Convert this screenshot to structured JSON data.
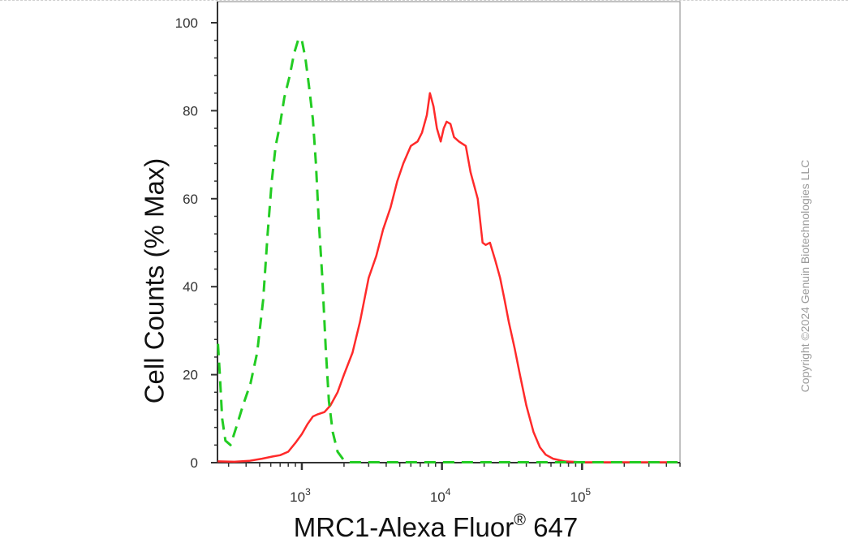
{
  "chart_data": {
    "type": "line",
    "title": "",
    "xlabel": "MRC1-Alexa Fluor",
    "xlabel_superscript": "®",
    "xlabel_suffix": " 647",
    "ylabel": "Cell Counts (% Max)",
    "x_scale": "log",
    "xlim": [
      250,
      500000
    ],
    "ylim": [
      0,
      100
    ],
    "yticks": [
      0,
      20,
      40,
      60,
      80,
      100
    ],
    "xticks": [
      {
        "value": 1000,
        "base": "10",
        "exp": "3"
      },
      {
        "value": 10000,
        "base": "10",
        "exp": "4"
      },
      {
        "value": 100000,
        "base": "10",
        "exp": "5"
      }
    ],
    "grid": false,
    "legend": "none",
    "series": [
      {
        "color": "#ff2a2a",
        "style": "solid",
        "points": [
          [
            251,
            0.3
          ],
          [
            330,
            0.2
          ],
          [
            420,
            0.4
          ],
          [
            520,
            0.9
          ],
          [
            620,
            1.4
          ],
          [
            700,
            1.7
          ],
          [
            800,
            2.5
          ],
          [
            900,
            4.5
          ],
          [
            1000,
            6.5
          ],
          [
            1100,
            8.8
          ],
          [
            1200,
            10.5
          ],
          [
            1300,
            11
          ],
          [
            1450,
            11.5
          ],
          [
            1600,
            13
          ],
          [
            1800,
            16
          ],
          [
            2000,
            20
          ],
          [
            2300,
            25
          ],
          [
            2600,
            32
          ],
          [
            3000,
            42
          ],
          [
            3400,
            47
          ],
          [
            3800,
            53
          ],
          [
            4300,
            58
          ],
          [
            4800,
            64
          ],
          [
            5300,
            68
          ],
          [
            6000,
            72
          ],
          [
            6700,
            73
          ],
          [
            7200,
            75
          ],
          [
            7800,
            79
          ],
          [
            8200,
            84
          ],
          [
            8700,
            81
          ],
          [
            9200,
            76
          ],
          [
            9800,
            73
          ],
          [
            10300,
            76
          ],
          [
            10800,
            77.5
          ],
          [
            11500,
            77
          ],
          [
            12200,
            74
          ],
          [
            13200,
            73
          ],
          [
            14800,
            72
          ],
          [
            16000,
            66
          ],
          [
            18000,
            60
          ],
          [
            19500,
            50
          ],
          [
            20500,
            49.5
          ],
          [
            22000,
            50
          ],
          [
            24000,
            46
          ],
          [
            26000,
            42
          ],
          [
            28000,
            37
          ],
          [
            30000,
            32
          ],
          [
            33000,
            26
          ],
          [
            36000,
            20
          ],
          [
            40000,
            13
          ],
          [
            45000,
            7
          ],
          [
            50000,
            3.5
          ],
          [
            55000,
            1.8
          ],
          [
            62000,
            0.9
          ],
          [
            75000,
            0.3
          ],
          [
            100000,
            0.1
          ],
          [
            480000,
            0.1
          ]
        ]
      },
      {
        "color": "#22cc22",
        "style": "dashed",
        "points": [
          [
            252,
            27
          ],
          [
            260,
            20
          ],
          [
            270,
            10
          ],
          [
            285,
            5
          ],
          [
            310,
            4
          ],
          [
            340,
            8
          ],
          [
            380,
            13
          ],
          [
            430,
            18
          ],
          [
            480,
            25
          ],
          [
            530,
            37
          ],
          [
            570,
            52
          ],
          [
            610,
            64
          ],
          [
            650,
            72
          ],
          [
            700,
            77
          ],
          [
            750,
            83
          ],
          [
            820,
            88
          ],
          [
            880,
            93
          ],
          [
            950,
            96.5
          ],
          [
            1000,
            96
          ],
          [
            1060,
            92
          ],
          [
            1120,
            86
          ],
          [
            1200,
            78
          ],
          [
            1260,
            68
          ],
          [
            1320,
            55
          ],
          [
            1400,
            42
          ],
          [
            1480,
            26
          ],
          [
            1560,
            14
          ],
          [
            1660,
            7
          ],
          [
            1800,
            2.5
          ],
          [
            2000,
            0.5
          ],
          [
            2200,
            0.1
          ],
          [
            480000,
            0.1
          ]
        ]
      }
    ]
  },
  "watermark": "Copyright ©2024 Genuin Biotechnologies LLC"
}
